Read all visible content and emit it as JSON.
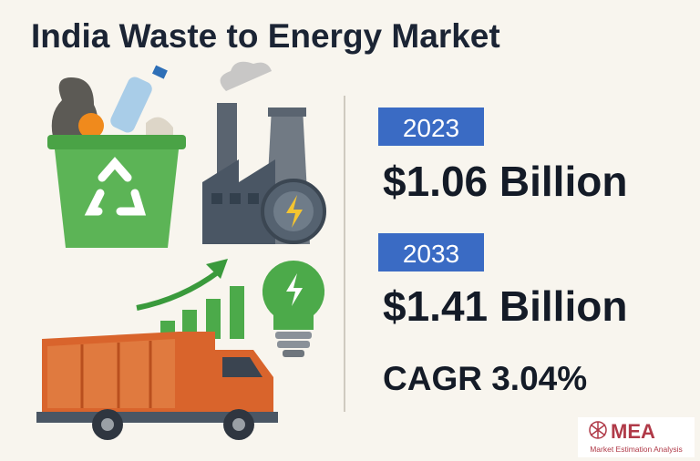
{
  "header": {
    "title": "India Waste to Energy Market"
  },
  "stats": [
    {
      "year": "2023",
      "value": "$1.06 Billion"
    },
    {
      "year": "2033",
      "value": "$1.41 Billion"
    }
  ],
  "cagr": "CAGR 3.04%",
  "logo": {
    "name": "MEA",
    "tagline": "Market Estimation Analysis"
  }
}
